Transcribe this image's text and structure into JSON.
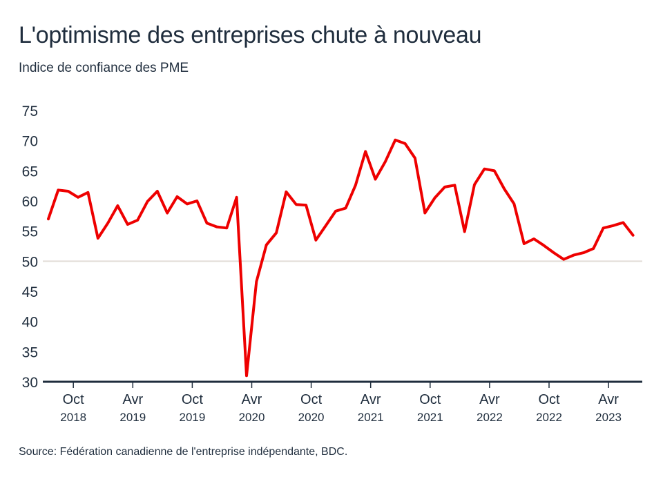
{
  "chart_data": {
    "type": "line",
    "title": "L'optimisme des entreprises chute à nouveau",
    "subtitle": "Indice de confiance des PME",
    "source": "Source: Fédération canadienne de l'entreprise indépendante, BDC.",
    "ylim": [
      30,
      75
    ],
    "yticks": [
      30,
      35,
      40,
      45,
      50,
      55,
      60,
      65,
      70,
      75
    ],
    "reference_line": 50,
    "grid": false,
    "xticks": [
      {
        "month": "Oct",
        "year": "2018",
        "index": 2
      },
      {
        "month": "Avr",
        "year": "2019",
        "index": 8
      },
      {
        "month": "Oct",
        "year": "2019",
        "index": 14
      },
      {
        "month": "Avr",
        "year": "2020",
        "index": 20
      },
      {
        "month": "Oct",
        "year": "2020",
        "index": 26
      },
      {
        "month": "Avr",
        "year": "2021",
        "index": 32
      },
      {
        "month": "Oct",
        "year": "2021",
        "index": 38
      },
      {
        "month": "Avr",
        "year": "2022",
        "index": 44
      },
      {
        "month": "Oct",
        "year": "2022",
        "index": 50
      },
      {
        "month": "Avr",
        "year": "2023",
        "index": 56
      }
    ],
    "series": [
      {
        "color": "#ee0000",
        "x_start": "2018-08",
        "x_end": "2023-07",
        "frequency": "monthly",
        "values": [
          57.0,
          61.8,
          61.6,
          60.6,
          61.4,
          53.8,
          56.3,
          59.2,
          56.1,
          56.8,
          59.9,
          61.6,
          58.0,
          60.7,
          59.5,
          60.0,
          56.3,
          55.7,
          55.5,
          60.6,
          31.0,
          46.6,
          52.7,
          54.7,
          61.5,
          59.4,
          59.3,
          53.5,
          55.9,
          58.3,
          58.8,
          62.6,
          68.2,
          63.6,
          66.5,
          70.1,
          69.5,
          67.1,
          58.0,
          60.5,
          62.3,
          62.6,
          54.9,
          62.7,
          65.3,
          65.0,
          62.0,
          59.5,
          52.9,
          53.7,
          52.6,
          51.4,
          50.3,
          51.0,
          51.4,
          52.1,
          55.5,
          55.9,
          56.4,
          54.3
        ]
      }
    ],
    "colors": {
      "text": "#1f2d3d",
      "axis": "#1f2d3d",
      "reference": "#e2dcd6"
    }
  }
}
